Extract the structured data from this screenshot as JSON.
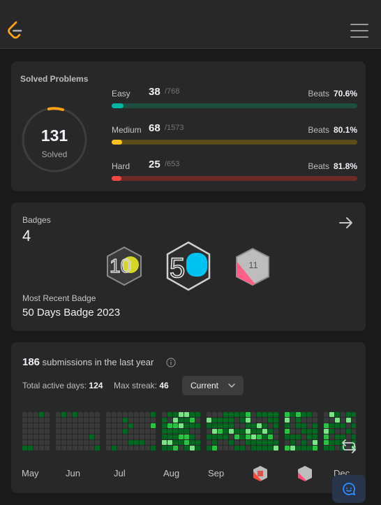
{
  "solved": {
    "title": "Solved Problems",
    "count": "131",
    "label": "Solved",
    "rows": [
      {
        "label": "Easy",
        "solved": "38",
        "total": "/768",
        "beats_label": "Beats",
        "beats": "70.6%",
        "progress": 0.0495
      },
      {
        "label": "Medium",
        "solved": "68",
        "total": "/1573",
        "beats_label": "Beats",
        "beats": "80.1%",
        "progress": 0.0432
      },
      {
        "label": "Hard",
        "solved": "25",
        "total": "/653",
        "beats_label": "Beats",
        "beats": "81.8%",
        "progress": 0.0383
      }
    ],
    "colors": {
      "easy": "#00b8a3",
      "easy_track": "#1c4d3e",
      "medium": "#ffc01e",
      "medium_track": "#5b4c1a",
      "hard": "#ef4743",
      "hard_track": "#6b2a25"
    }
  },
  "badges": {
    "label": "Badges",
    "count": "4",
    "items": [
      {
        "icon": "100-days-badge-icon",
        "text": "10"
      },
      {
        "icon": "50-days-badge-icon",
        "text": "5"
      },
      {
        "icon": "monthly-badge-icon",
        "text": "11"
      }
    ],
    "recent_label": "Most Recent Badge",
    "recent_name": "50 Days Badge 2023"
  },
  "activity": {
    "submissions": "186",
    "submissions_text": "submissions in the last year",
    "active_days_label": "Total active days:",
    "active_days": "124",
    "max_streak_label": "Max streak:",
    "max_streak": "46",
    "dropdown_value": "Current",
    "months": [
      "May",
      "Jun",
      "Jul",
      "Aug",
      "Sep",
      "Dec"
    ],
    "colors": {
      "empty": "#393939",
      "l1": "#016620",
      "l2": "#28c244",
      "l3": "#7ce38b"
    }
  }
}
